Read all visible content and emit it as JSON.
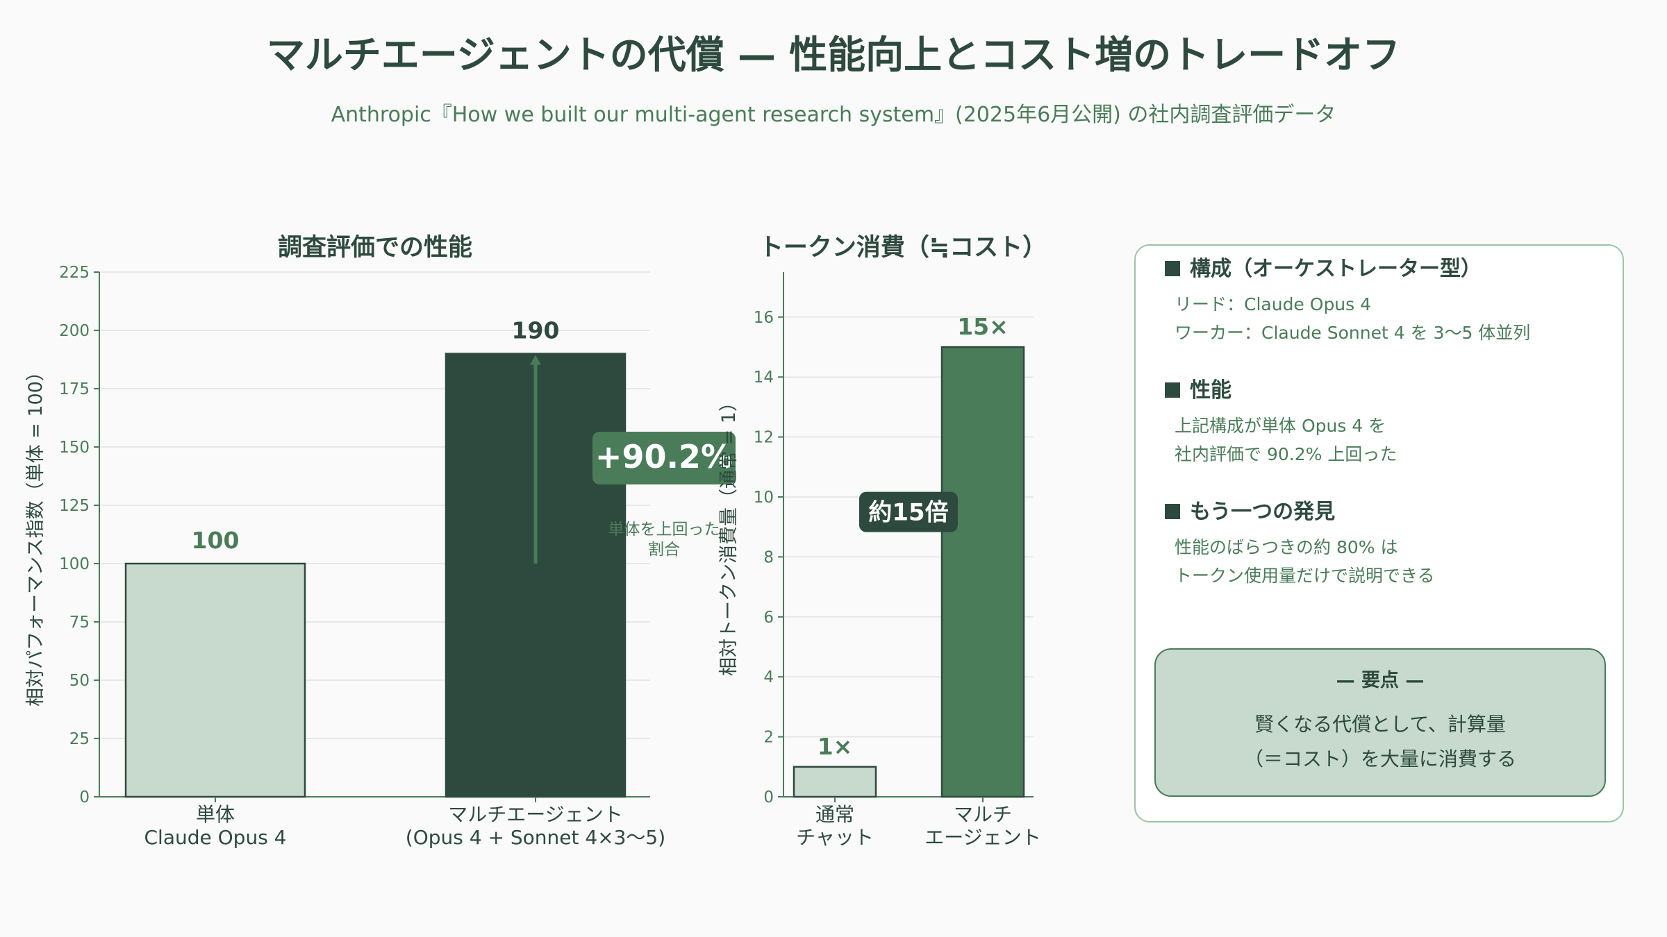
{
  "title": "マルチエージェントの代償 — 性能向上とコスト増のトレードオフ",
  "subtitle": "Anthropic『How we built our multi-agent research system』(2025年6月公開) の社内調査評価データ",
  "chart_data": [
    {
      "type": "bar",
      "title": "調査評価での性能",
      "ylabel": "相対パフォーマンス指数（単体 = 100）",
      "ylim": [
        0,
        225
      ],
      "yticks": [
        0,
        25,
        50,
        75,
        100,
        125,
        150,
        175,
        200,
        225
      ],
      "grid": true,
      "categories": [
        [
          "単体",
          "Claude Opus 4"
        ],
        [
          "マルチエージェント",
          "(Opus 4 + Sonnet 4×3〜5)"
        ]
      ],
      "values": [
        100,
        190
      ],
      "data_labels": [
        "100",
        "190"
      ],
      "colors": [
        "#c8dace",
        "#2e4a3e"
      ],
      "annotation": {
        "badge": "+90.2%",
        "caption": [
          "単体を上回った",
          "割合"
        ],
        "arrow_from": 100,
        "arrow_to": 190,
        "color": "#4a7c59"
      }
    },
    {
      "type": "bar",
      "title": "トークン消費（≒コスト）",
      "ylabel": "相対トークン消費量（通常 = 1）",
      "ylim": [
        0,
        17.5
      ],
      "yticks": [
        0,
        2,
        4,
        6,
        8,
        10,
        12,
        14,
        16
      ],
      "grid": true,
      "categories": [
        [
          "通常",
          "チャット"
        ],
        [
          "マルチ",
          "エージェント"
        ]
      ],
      "values": [
        1,
        15
      ],
      "data_labels": [
        "1×",
        "15×"
      ],
      "colors": [
        "#c8dace",
        "#4a7c59"
      ],
      "annotation": {
        "badge": "約15倍",
        "at_value": 9.5,
        "color": "#2e4a3e"
      }
    }
  ],
  "panel": {
    "sections": [
      {
        "heading": "構成（オーケストレーター型）",
        "lines": [
          "リード：Claude Opus 4",
          "ワーカー：Claude Sonnet 4 を 3〜5 体並列"
        ]
      },
      {
        "heading": "性能",
        "lines": [
          "上記構成が単体 Opus 4 を",
          "社内評価で 90.2% 上回った"
        ]
      },
      {
        "heading": "もう一つの発見",
        "lines": [
          "性能のばらつきの約 80% は",
          "トークン使用量だけで説明できる"
        ]
      }
    ],
    "key": {
      "title": "— 要点 —",
      "lines": [
        "賢くなる代償として、計算量",
        "（＝コスト）を大量に消費する"
      ]
    }
  }
}
